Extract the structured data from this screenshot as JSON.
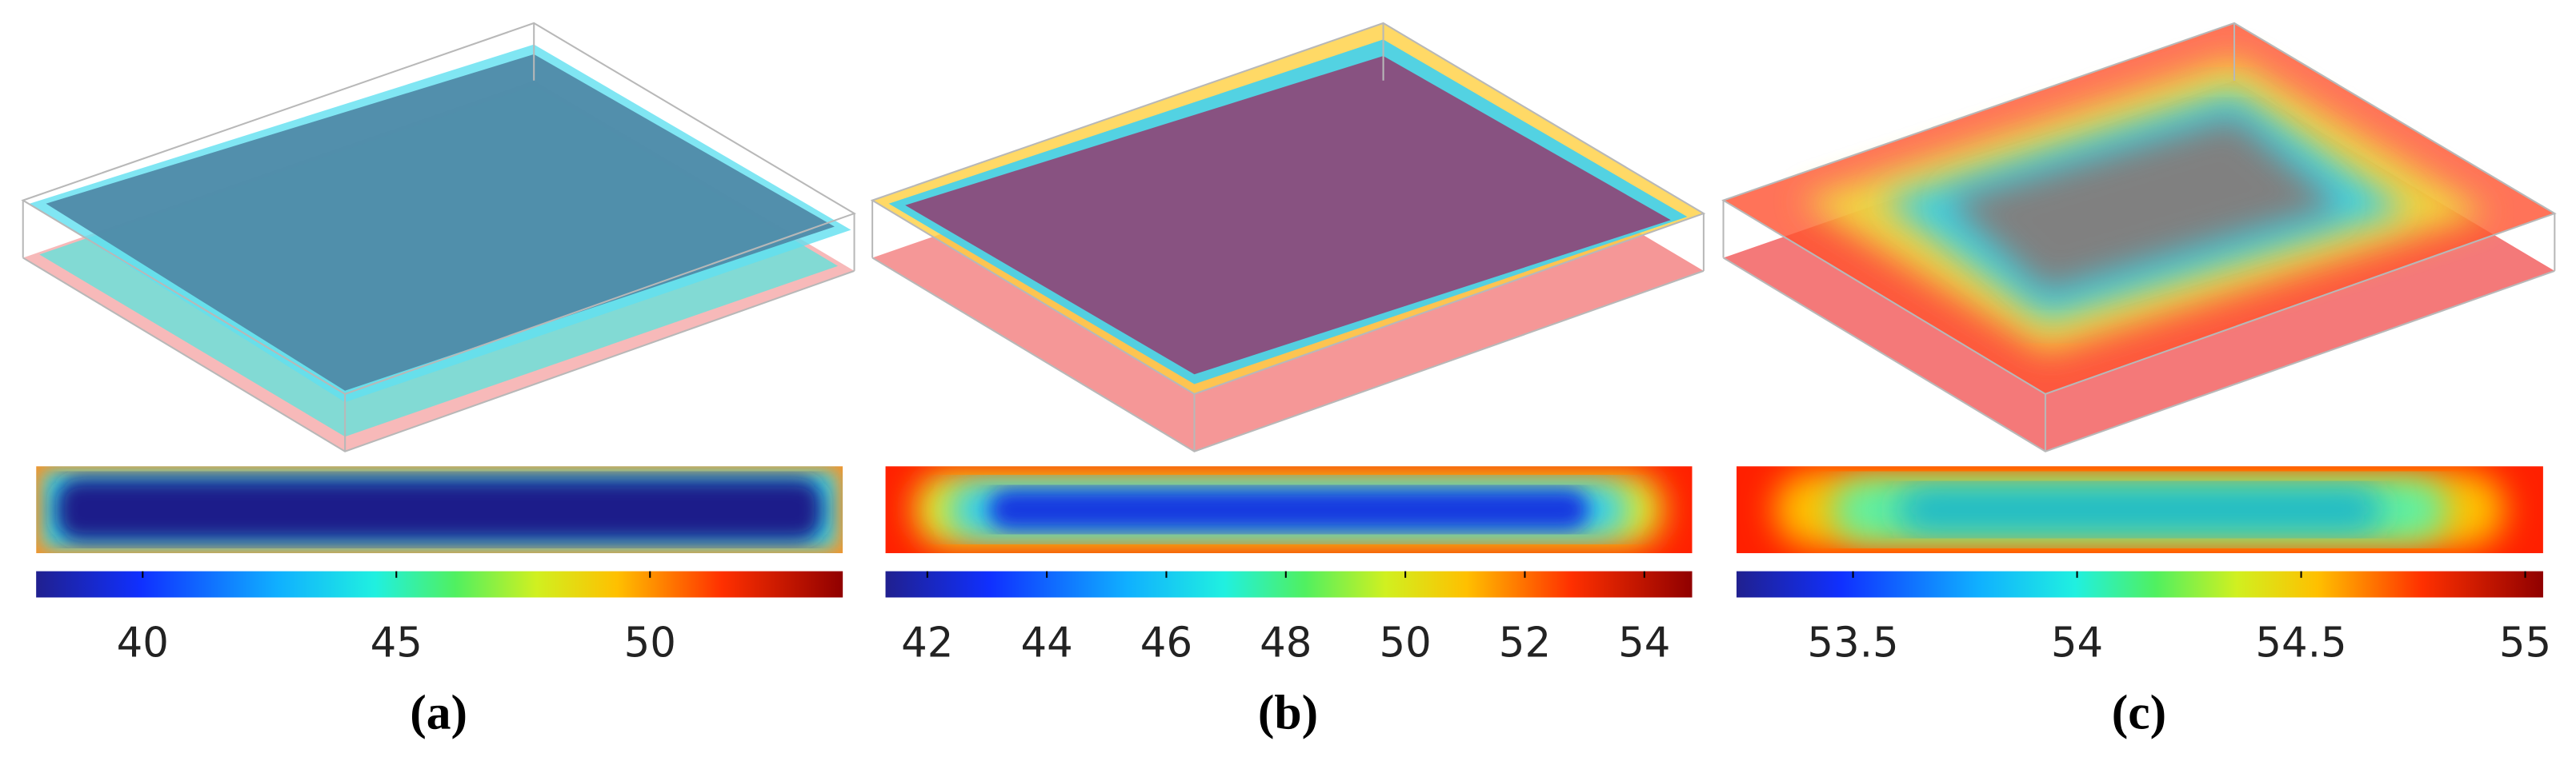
{
  "panels": [
    {
      "label": "(a)",
      "colorbar": {
        "lim": [
          37.9,
          53.8
        ],
        "ticks": [
          40,
          45,
          50
        ]
      }
    },
    {
      "label": "(b)",
      "colorbar": {
        "lim": [
          41.3,
          54.8
        ],
        "ticks": [
          42,
          44,
          46,
          48,
          50,
          52,
          54
        ]
      }
    },
    {
      "label": "(c)",
      "colorbar": {
        "lim": [
          53.24,
          55.04
        ],
        "ticks": [
          53.5,
          54,
          54.5,
          55
        ]
      }
    }
  ]
}
